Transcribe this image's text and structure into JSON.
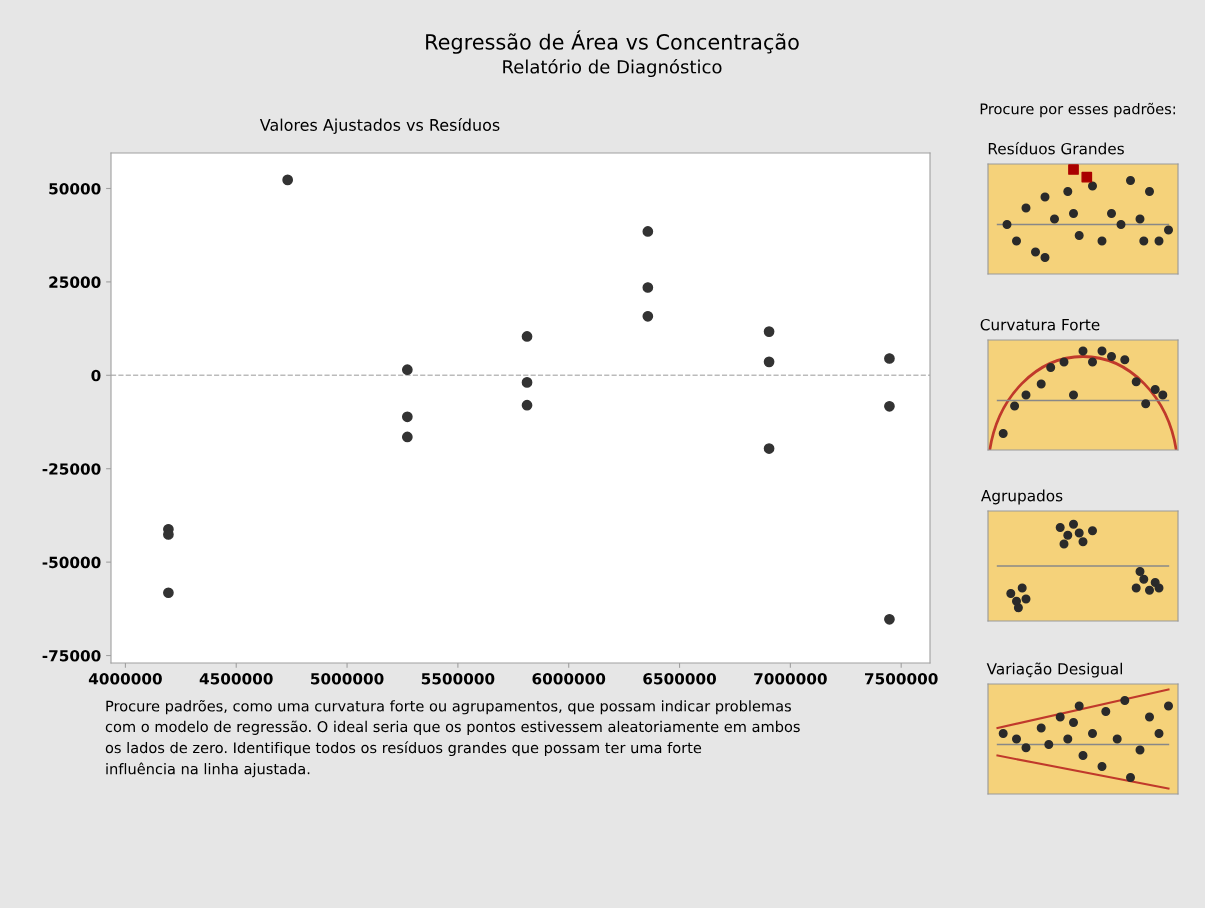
{
  "chart_data": {
    "type": "scatter",
    "title": "Regressão de Área vs Concentração",
    "subtitle": "Relatório de Diagnóstico",
    "annotations": [
      "Valores Ajustados vs Resíduos",
      "Procure padrões, como uma curvatura forte ou agrupamentos, que possam indicar problemas\ncom o modelo de regressão. O ideal seria que os pontos estivessem aleatoriamente em ambos\nos lados de zero. Identifique todos os resíduos grandes que possam ter uma forte\ninfluência na linha ajustada.",
      "Procure por esses padrões:",
      "Resíduos Grandes",
      "Curvatura Forte",
      "Agrupados",
      "Variação Desigual"
    ],
    "series": [
      {
        "color": "#333333",
        "x": [
          4194000,
          4194000,
          4194000,
          4732000,
          5272000,
          5272000,
          5272000,
          5812000,
          5812000,
          5812000,
          6357000,
          6357000,
          6357000,
          6904000,
          6904000,
          6904000,
          7447000,
          7447000,
          7447000
        ],
        "values": [
          -41200,
          -42600,
          -58200,
          52300,
          1500,
          -11100,
          -16500,
          10400,
          -1900,
          -8000,
          38500,
          23500,
          15800,
          11700,
          3600,
          -19600,
          4500,
          -8300,
          -65300
        ]
      }
    ],
    "xlim": [
      3935000,
      7630000
    ],
    "ylim": [
      -77000,
      59500
    ],
    "xticks": [
      4000000,
      4500000,
      5000000,
      5500000,
      6000000,
      6500000,
      7000000,
      7500000
    ],
    "yticks": [
      -75000,
      -50000,
      -25000,
      0,
      25000,
      50000
    ],
    "ref_lines": [
      {
        "axis": "y",
        "value": 0,
        "color": "#bbbbbb",
        "line_style": "dashed"
      }
    ],
    "marker": "circle",
    "grid": false,
    "legend": false
  }
}
